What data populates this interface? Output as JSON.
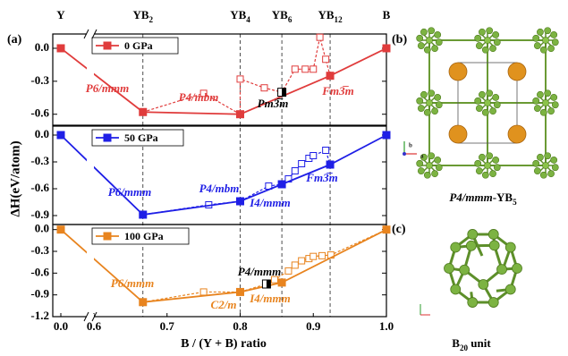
{
  "chart_data": [
    {
      "type": "line",
      "legend": "upper left",
      "composition_labels": [
        {
          "x": 0.0,
          "label": "Y"
        },
        {
          "x": 0.667,
          "label": "YB2"
        },
        {
          "x": 0.8,
          "label": "YB4"
        },
        {
          "x": 0.857,
          "label": "YB6"
        },
        {
          "x": 0.923,
          "label": "YB12"
        },
        {
          "x": 1.0,
          "label": "B"
        }
      ],
      "ylim": [
        -0.7,
        0.13
      ],
      "yticks": [
        {
          "value": 0,
          "label": "0.0"
        },
        -0.3,
        -0.6
      ],
      "series": [
        {
          "name": "0 GPa",
          "color": "#e03c3c",
          "x": [
            0.0,
            0.667,
            0.8,
            0.923,
            1.0
          ],
          "values": [
            0,
            -0.58,
            -0.6,
            -0.25,
            0
          ]
        },
        {
          "color": "#e03c3c",
          "dashed": true,
          "x": [
            0.667,
            0.75,
            0.8,
            0.8,
            0.833,
            0.857,
            0.875,
            0.889,
            0.9,
            0.909,
            0.917,
            0.923
          ],
          "values": [
            -0.58,
            -0.41,
            -0.6,
            -0.28,
            -0.36,
            -0.4,
            -0.19,
            -0.19,
            -0.19,
            0.1,
            -0.1,
            -0.25
          ]
        },
        {
          "color": "#000000",
          "highlight": true,
          "x": [
            0.857
          ],
          "values": [
            -0.4
          ]
        }
      ],
      "annotations": [
        {
          "text": "P6/mmm",
          "color": "#e03c3c"
        },
        {
          "text": "P4/mbm",
          "color": "#e03c3c"
        },
        {
          "text": "Pm3̅m",
          "color": "#000000"
        },
        {
          "text": "Fm3̅m",
          "color": "#e03c3c"
        }
      ]
    },
    {
      "type": "line",
      "legend": "upper left",
      "ylabel": "ΔH(eV/atom)",
      "ylim": [
        -1.0,
        0.1
      ],
      "yticks": [
        {
          "value": 0,
          "label": "0.0"
        },
        -0.3,
        -0.6,
        -0.9
      ],
      "series": [
        {
          "name": "50 GPa",
          "color": "#1f1fe6",
          "x": [
            0.0,
            0.667,
            0.8,
            0.857,
            0.923,
            1.0
          ],
          "values": [
            0,
            -0.89,
            -0.74,
            -0.55,
            -0.33,
            0
          ]
        },
        {
          "color": "#1f1fe6",
          "dashed": true,
          "x": [
            0.667,
            0.757,
            0.8,
            0.839,
            0.857,
            0.866,
            0.875,
            0.884,
            0.894,
            0.9,
            0.917,
            0.923
          ],
          "values": [
            -0.89,
            -0.78,
            -0.74,
            -0.57,
            -0.55,
            -0.49,
            -0.4,
            -0.32,
            -0.26,
            -0.23,
            -0.17,
            -0.33
          ]
        }
      ],
      "annotations": [
        {
          "text": "P6/mmm",
          "color": "#1f1fe6"
        },
        {
          "text": "P4/mbm",
          "color": "#1f1fe6"
        },
        {
          "text": "I4/mmm",
          "color": "#1f1fe6"
        },
        {
          "text": "Fm3̅m",
          "color": "#1f1fe6"
        }
      ]
    },
    {
      "type": "line",
      "legend": "upper left",
      "xlabel": "B / (Y + B) ratio",
      "xlim": [
        0.0,
        1.0
      ],
      "xbreak": 0.6,
      "xticks": [
        {
          "value": 0,
          "label": "0.0"
        },
        0.6,
        0.7,
        0.8,
        0.9,
        {
          "value": 1,
          "label": "1.0"
        }
      ],
      "ylim": [
        -1.2,
        0.07
      ],
      "yticks": [
        {
          "value": 0,
          "label": "0.0"
        },
        -0.3,
        -0.6,
        -0.9,
        -1.2
      ],
      "series": [
        {
          "name": "100 GPa",
          "color": "#e8841f",
          "x": [
            0.0,
            0.667,
            0.8,
            0.857,
            1.0
          ],
          "values": [
            0,
            -1.0,
            -0.86,
            -0.73,
            0
          ]
        },
        {
          "color": "#e8841f",
          "dashed": true,
          "x": [
            0.667,
            0.75,
            0.8,
            0.836,
            0.847,
            0.866,
            0.875,
            0.884,
            0.894,
            0.9,
            0.912,
            0.924,
            1.0
          ],
          "values": [
            -1.0,
            -0.86,
            -0.86,
            -0.75,
            -0.69,
            -0.57,
            -0.49,
            -0.43,
            -0.4,
            -0.37,
            -0.36,
            -0.35,
            0
          ]
        },
        {
          "color": "#000000",
          "highlight": true,
          "x": [
            0.836
          ],
          "values": [
            -0.75
          ]
        }
      ],
      "annotations": [
        {
          "text": "P6/mmm",
          "color": "#e8841f"
        },
        {
          "text": "C2/m",
          "color": "#e8841f"
        },
        {
          "text": "P4/mmm",
          "color": "#000000"
        },
        {
          "text": "I4/mmm",
          "color": "#e8841f"
        }
      ]
    }
  ],
  "panel_letters": [
    "(a)",
    "(b)",
    "(c)"
  ],
  "caption_b": "P4/mmm-YB5",
  "caption_c": "B20 unit",
  "axis_letters": [
    "b",
    "a"
  ]
}
